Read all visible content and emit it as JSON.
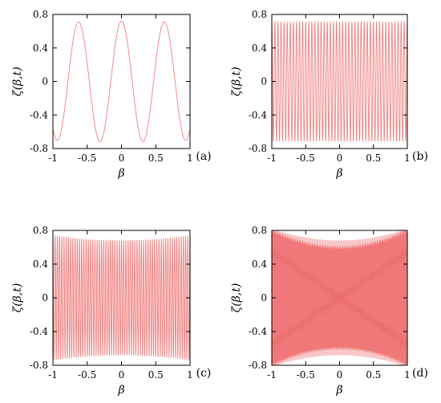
{
  "figure": {
    "colors": {
      "curve": "#f08080",
      "fill_light": "#f8c8c8",
      "fill_dark": "#f07878",
      "axes": "#000000"
    }
  },
  "chart_data": [
    {
      "type": "line",
      "panel_label": "(a)",
      "xlabel": "β",
      "ylabel": "ζ(β,t)",
      "xlim": [
        -1,
        1
      ],
      "ylim": [
        -0.8,
        0.8
      ],
      "xticks": [
        "-1",
        "-0.5",
        "0",
        "0.5",
        "1"
      ],
      "yticks": [
        "0.8",
        "0.4",
        "0",
        "-0.4",
        "-0.8"
      ],
      "series": [
        {
          "function": "oscillation",
          "cycles_over_range": 3.2,
          "amplitude_min": 0.7,
          "amplitude_max": 0.72,
          "phase": "peak at β=0"
        }
      ]
    },
    {
      "type": "line",
      "panel_label": "(b)",
      "xlabel": "β",
      "ylabel": "ζ(β,t)",
      "xlim": [
        -1,
        1
      ],
      "ylim": [
        -0.8,
        0.8
      ],
      "xticks": [
        "-1",
        "-0.5",
        "0",
        "0.5",
        "1"
      ],
      "yticks": [
        "0.8",
        "0.4",
        "0",
        "-0.4",
        "-0.8"
      ],
      "series": [
        {
          "function": "oscillation",
          "cycles_over_range": 44,
          "amplitude_min": 0.71,
          "amplitude_max": 0.71
        }
      ]
    },
    {
      "type": "line",
      "panel_label": "(c)",
      "xlabel": "β",
      "ylabel": "ζ(β,t)",
      "xlim": [
        -1,
        1
      ],
      "ylim": [
        -0.8,
        0.8
      ],
      "xticks": [
        "-1",
        "-0.5",
        "0",
        "0.5",
        "1"
      ],
      "yticks": [
        "0.8",
        "0.4",
        "0",
        "-0.4",
        "-0.8"
      ],
      "series": [
        {
          "function": "oscillation",
          "cycles_over_range": 62,
          "amplitude_min": 0.68,
          "amplitude_max": 0.74,
          "envelope": "lowest at β=0"
        }
      ]
    },
    {
      "type": "area",
      "panel_label": "(d)",
      "xlabel": "β",
      "ylabel": "ζ(β,t)",
      "xlim": [
        -1,
        1
      ],
      "ylim": [
        -0.8,
        0.8
      ],
      "xticks": [
        "-1",
        "-0.5",
        "0",
        "0.5",
        "1"
      ],
      "yticks": [
        "0.8",
        "0.4",
        "0",
        "-0.4",
        "-0.8"
      ],
      "series": [
        {
          "function": "dense oscillation band",
          "envelope_at_edges": 0.8,
          "envelope_at_center": 0.66,
          "inner_envelope_at_center": 0.6
        }
      ]
    }
  ]
}
